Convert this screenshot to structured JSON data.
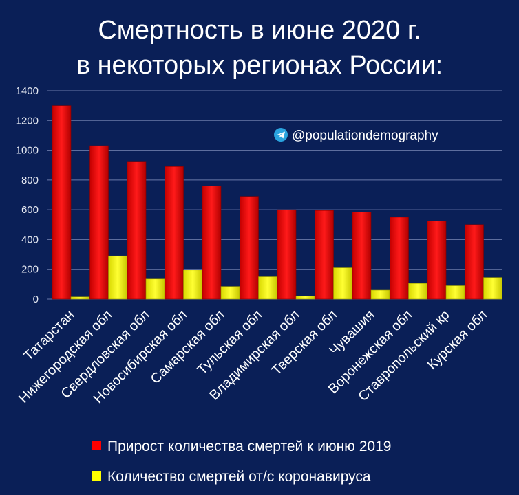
{
  "chart_data": {
    "type": "bar",
    "title": [
      "Смертность в июне 2020 г.",
      "в некоторых регионах России:"
    ],
    "categories": [
      "Татарстан",
      "Нижегородская обл",
      "Свердловская обл",
      "Новосибирская обл",
      "Самарская обл",
      "Тульская обл",
      "Владимирская обл",
      "Тверская обл",
      "Чувашия",
      "Воронежская обл",
      "Ставропольский кр",
      "Курская обл"
    ],
    "series": [
      {
        "name": "Прирост количества смертей к июню 2019",
        "color": "#ff0000",
        "values": [
          1300,
          1030,
          925,
          890,
          760,
          690,
          600,
          595,
          585,
          550,
          525,
          500
        ]
      },
      {
        "name": "Количество смертей от/с коронавируса",
        "color": "#ffff00",
        "values": [
          15,
          290,
          135,
          195,
          85,
          150,
          20,
          210,
          60,
          105,
          90,
          145
        ]
      }
    ],
    "ylim": [
      0,
      1400
    ],
    "yticks": [
      0,
      200,
      400,
      600,
      800,
      1000,
      1200,
      1400
    ],
    "grid": true,
    "legend_position": "bottom-center",
    "annotation": "@populationdemography",
    "annotation_icon": "telegram-icon"
  }
}
